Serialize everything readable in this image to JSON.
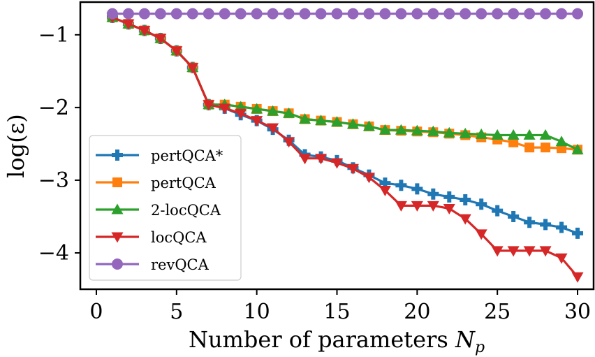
{
  "chart_data": {
    "type": "line",
    "xlabel": "Number of parameters N_p",
    "xlabel_main": "Number of parameters ",
    "xlabel_var": "N",
    "xlabel_sub": "p",
    "ylabel": "log(ε)",
    "xlim": [
      -1,
      31
    ],
    "ylim": [
      -4.5,
      -0.55
    ],
    "xticks": [
      0,
      5,
      10,
      15,
      20,
      25,
      30
    ],
    "xtick_labels": [
      "0",
      "5",
      "10",
      "15",
      "20",
      "25",
      "30"
    ],
    "yticks": [
      -1,
      -2,
      -3,
      -4
    ],
    "ytick_labels": [
      "−1",
      "−2",
      "−3",
      "−4"
    ],
    "grid": false,
    "legend_position": "lower-left",
    "x": [
      1,
      2,
      3,
      4,
      5,
      6,
      7,
      8,
      9,
      10,
      11,
      12,
      13,
      14,
      15,
      16,
      17,
      18,
      19,
      20,
      21,
      22,
      23,
      24,
      25,
      26,
      27,
      28,
      29,
      30
    ],
    "series": [
      {
        "name": "pertQCA*",
        "color": "#1f77b4",
        "marker": "plus",
        "values": [
          -0.76,
          -0.85,
          -0.94,
          -1.05,
          -1.22,
          -1.45,
          -1.96,
          -2.01,
          -2.1,
          -2.18,
          -2.3,
          -2.45,
          -2.65,
          -2.68,
          -2.73,
          -2.83,
          -2.93,
          -3.04,
          -3.07,
          -3.12,
          -3.19,
          -3.23,
          -3.27,
          -3.33,
          -3.42,
          -3.5,
          -3.58,
          -3.61,
          -3.65,
          -3.73
        ]
      },
      {
        "name": "pertQCA",
        "color": "#ff7f0e",
        "marker": "square",
        "values": [
          -0.76,
          -0.85,
          -0.94,
          -1.05,
          -1.22,
          -1.45,
          -1.96,
          -1.96,
          -1.99,
          -2.02,
          -2.05,
          -2.08,
          -2.16,
          -2.18,
          -2.2,
          -2.23,
          -2.26,
          -2.31,
          -2.32,
          -2.33,
          -2.34,
          -2.36,
          -2.38,
          -2.41,
          -2.44,
          -2.48,
          -2.55,
          -2.55,
          -2.56,
          -2.58
        ]
      },
      {
        "name": "2-locQCA",
        "color": "#2ca02c",
        "marker": "triangle-up",
        "values": [
          -0.76,
          -0.85,
          -0.94,
          -1.05,
          -1.22,
          -1.45,
          -1.96,
          -1.96,
          -1.99,
          -2.02,
          -2.05,
          -2.08,
          -2.16,
          -2.18,
          -2.2,
          -2.23,
          -2.26,
          -2.31,
          -2.31,
          -2.32,
          -2.33,
          -2.35,
          -2.36,
          -2.37,
          -2.38,
          -2.38,
          -2.38,
          -2.38,
          -2.47,
          -2.58
        ]
      },
      {
        "name": "locQCA",
        "color": "#d62728",
        "marker": "triangle-down",
        "values": [
          -0.76,
          -0.85,
          -0.94,
          -1.05,
          -1.22,
          -1.45,
          -1.96,
          -2.01,
          -2.08,
          -2.18,
          -2.28,
          -2.47,
          -2.7,
          -2.7,
          -2.76,
          -2.84,
          -2.96,
          -3.14,
          -3.35,
          -3.35,
          -3.35,
          -3.39,
          -3.53,
          -3.74,
          -3.97,
          -3.97,
          -3.97,
          -3.97,
          -4.07,
          -4.33
        ]
      },
      {
        "name": "revQCA",
        "color": "#9467bd",
        "marker": "circle",
        "values": [
          -0.71,
          -0.71,
          -0.71,
          -0.71,
          -0.71,
          -0.71,
          -0.71,
          -0.71,
          -0.71,
          -0.71,
          -0.71,
          -0.71,
          -0.71,
          -0.71,
          -0.71,
          -0.71,
          -0.71,
          -0.71,
          -0.71,
          -0.71,
          -0.71,
          -0.71,
          -0.71,
          -0.71,
          -0.71,
          -0.71,
          -0.71,
          -0.71,
          -0.71,
          -0.71
        ]
      }
    ]
  }
}
